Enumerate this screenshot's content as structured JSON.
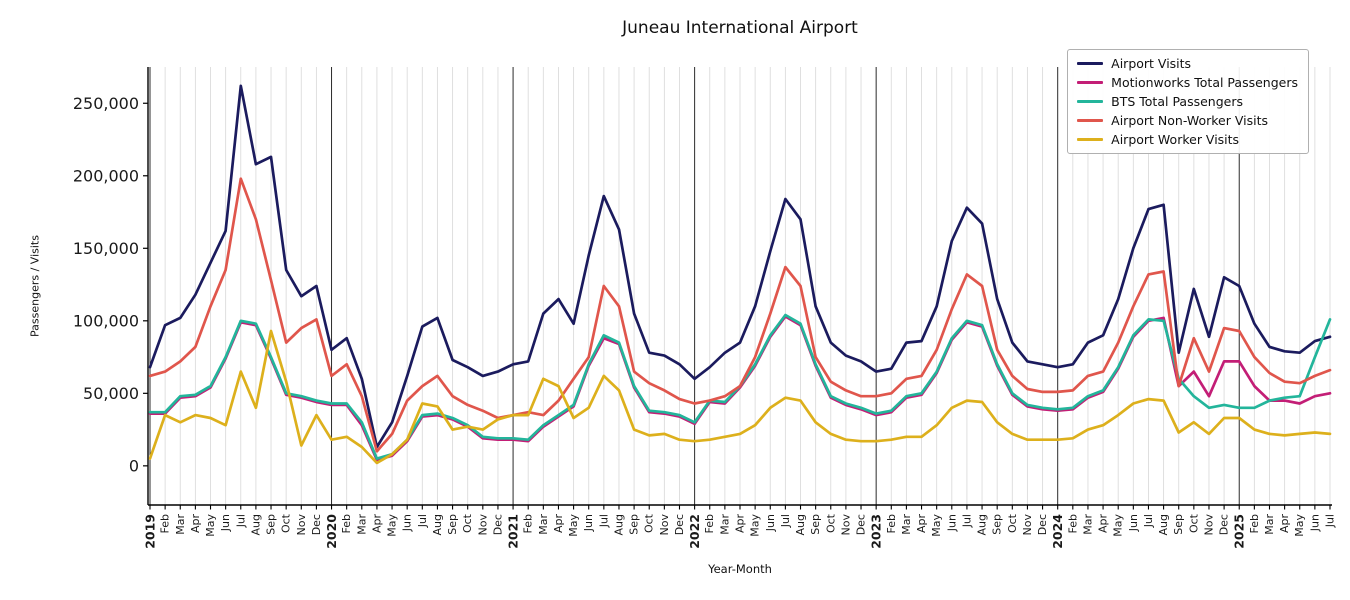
{
  "chart_data": {
    "type": "line",
    "title": "Juneau International Airport",
    "xlabel": "Year-Month",
    "ylabel": "Passengers / Visits",
    "ylim": [
      -27000,
      275000
    ],
    "grid": "vertical-monthly",
    "legend_position": "upper right",
    "yticks": [
      0,
      50000,
      100000,
      150000,
      200000,
      250000
    ],
    "ytick_labels": [
      "0",
      "50,000",
      "100,000",
      "150,000",
      "200,000",
      "250,000"
    ],
    "x_labels": [
      "2019",
      "Feb",
      "Mar",
      "Apr",
      "May",
      "Jun",
      "Jul",
      "Aug",
      "Sep",
      "Oct",
      "Nov",
      "Dec",
      "2020",
      "Feb",
      "Mar",
      "Apr",
      "May",
      "Jun",
      "Jul",
      "Aug",
      "Sep",
      "Oct",
      "Nov",
      "Dec",
      "2021",
      "Feb",
      "Mar",
      "Apr",
      "May",
      "Jun",
      "Jul",
      "Aug",
      "Sep",
      "Oct",
      "Nov",
      "Dec",
      "2022",
      "Feb",
      "Mar",
      "Apr",
      "May",
      "Jun",
      "Jul",
      "Aug",
      "Sep",
      "Oct",
      "Nov",
      "Dec",
      "2023",
      "Feb",
      "Mar",
      "Apr",
      "May",
      "Jun",
      "Jul",
      "Aug",
      "Sep",
      "Oct",
      "Nov",
      "Dec",
      "2024",
      "Feb",
      "Mar",
      "Apr",
      "May",
      "Jun",
      "Jul",
      "Aug",
      "Sep",
      "Oct",
      "Nov",
      "Dec",
      "2025",
      "Feb",
      "Mar",
      "Apr",
      "May",
      "Jun",
      "Jul"
    ],
    "series": [
      {
        "name": "Airport Visits",
        "color": "#1b1b5e",
        "values": [
          68000,
          97000,
          102000,
          118000,
          140000,
          162000,
          262000,
          208000,
          213000,
          135000,
          117000,
          124000,
          80000,
          88000,
          60000,
          13000,
          30000,
          62000,
          96000,
          102000,
          73000,
          68000,
          62000,
          65000,
          70000,
          72000,
          105000,
          115000,
          98000,
          145000,
          186000,
          163000,
          105000,
          78000,
          76000,
          70000,
          60000,
          68000,
          78000,
          85000,
          110000,
          148000,
          184000,
          170000,
          110000,
          85000,
          76000,
          72000,
          65000,
          67000,
          85000,
          86000,
          110000,
          155000,
          178000,
          167000,
          115000,
          85000,
          72000,
          70000,
          68000,
          70000,
          85000,
          90000,
          115000,
          150000,
          177000,
          180000,
          78000,
          122000,
          89000,
          130000,
          124000,
          98000,
          82000,
          79000,
          78000,
          86000,
          89000
        ]
      },
      {
        "name": "Motionworks Total Passengers",
        "color": "#c31e76",
        "values": [
          36000,
          36000,
          47000,
          48000,
          54000,
          74000,
          99000,
          97000,
          74000,
          49000,
          47000,
          44000,
          42000,
          42000,
          28000,
          4000,
          7000,
          17000,
          34000,
          35000,
          32000,
          27000,
          19000,
          18000,
          18000,
          17000,
          27000,
          34000,
          41000,
          69000,
          88000,
          84000,
          54000,
          37000,
          36000,
          34000,
          29000,
          44000,
          43000,
          54000,
          69000,
          89000,
          103000,
          97000,
          69000,
          47000,
          42000,
          39000,
          35000,
          37000,
          47000,
          49000,
          64000,
          87000,
          99000,
          96000,
          69000,
          49000,
          41000,
          39000,
          38000,
          39000,
          47000,
          51000,
          67000,
          89000,
          100000,
          102000,
          55000,
          65000,
          48000,
          72000,
          72000,
          55000,
          45000,
          45000,
          43000,
          48000,
          50000
        ]
      },
      {
        "name": "BTS Total Passengers",
        "color": "#23b59b",
        "values": [
          37000,
          37000,
          48000,
          49000,
          55000,
          75000,
          100000,
          98000,
          75000,
          50000,
          48000,
          45000,
          43000,
          43000,
          30000,
          5000,
          8000,
          18000,
          35000,
          36000,
          33000,
          28000,
          20000,
          19000,
          19000,
          18000,
          28000,
          35000,
          42000,
          70000,
          90000,
          85000,
          55000,
          38000,
          37000,
          35000,
          30000,
          45000,
          44000,
          55000,
          70000,
          90000,
          104000,
          98000,
          70000,
          48000,
          43000,
          40000,
          36000,
          38000,
          48000,
          50000,
          65000,
          88000,
          100000,
          97000,
          70000,
          50000,
          42000,
          40000,
          39000,
          40000,
          48000,
          52000,
          68000,
          90000,
          101000,
          100000,
          60000,
          48000,
          40000,
          42000,
          40000,
          40000,
          45000,
          47000,
          48000,
          75000,
          101000
        ]
      },
      {
        "name": "Airport Non-Worker Visits",
        "color": "#e0564c",
        "values": [
          62000,
          65000,
          72000,
          82000,
          110000,
          135000,
          198000,
          170000,
          128000,
          85000,
          95000,
          101000,
          62000,
          70000,
          48000,
          10000,
          22000,
          45000,
          55000,
          62000,
          48000,
          42000,
          38000,
          33000,
          35000,
          37000,
          35000,
          45000,
          60000,
          75000,
          124000,
          110000,
          65000,
          57000,
          52000,
          46000,
          43000,
          45000,
          48000,
          55000,
          75000,
          105000,
          137000,
          124000,
          75000,
          58000,
          52000,
          48000,
          48000,
          50000,
          60000,
          62000,
          80000,
          108000,
          132000,
          124000,
          80000,
          62000,
          53000,
          51000,
          51000,
          52000,
          62000,
          65000,
          85000,
          110000,
          132000,
          134000,
          55000,
          88000,
          65000,
          95000,
          93000,
          75000,
          64000,
          58000,
          57000,
          62000,
          66000
        ]
      },
      {
        "name": "Airport Worker Visits",
        "color": "#ddb01c",
        "values": [
          5000,
          35000,
          30000,
          35000,
          33000,
          28000,
          65000,
          40000,
          93000,
          58000,
          14000,
          35000,
          18000,
          20000,
          13000,
          2000,
          8000,
          18000,
          43000,
          41000,
          25000,
          27000,
          25000,
          32000,
          35000,
          35000,
          60000,
          55000,
          33000,
          40000,
          62000,
          52000,
          25000,
          21000,
          22000,
          18000,
          17000,
          18000,
          20000,
          22000,
          28000,
          40000,
          47000,
          45000,
          30000,
          22000,
          18000,
          17000,
          17000,
          18000,
          20000,
          20000,
          28000,
          40000,
          45000,
          44000,
          30000,
          22000,
          18000,
          18000,
          18000,
          19000,
          25000,
          28000,
          35000,
          43000,
          46000,
          45000,
          23000,
          30000,
          22000,
          33000,
          33000,
          25000,
          22000,
          21000,
          22000,
          23000,
          22000
        ]
      }
    ]
  }
}
